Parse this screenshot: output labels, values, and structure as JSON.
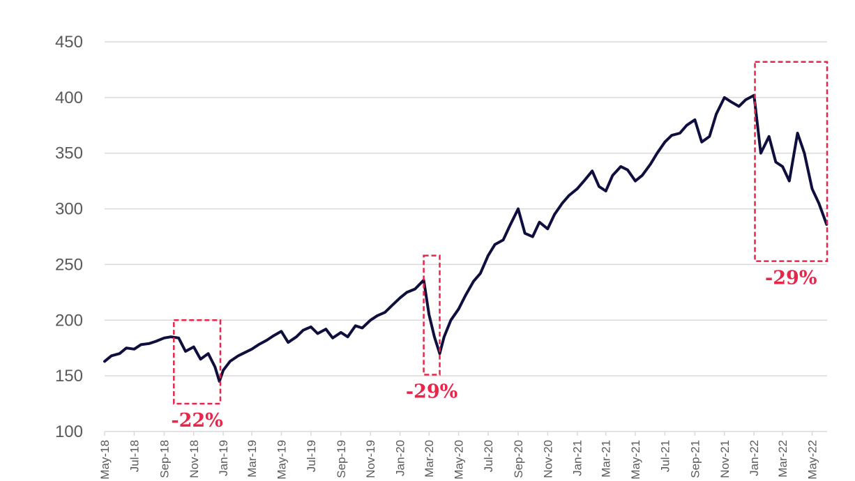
{
  "chart_data": {
    "type": "line",
    "title": "",
    "xlabel": "",
    "ylabel": "",
    "ylim": [
      100,
      450
    ],
    "y_ticks": [
      100,
      150,
      200,
      250,
      300,
      350,
      400,
      450
    ],
    "x_tick_labels": [
      "May-18",
      "Jul-18",
      "Sep-18",
      "Nov-18",
      "Jan-19",
      "Mar-19",
      "May-19",
      "Jul-19",
      "Sep-19",
      "Nov-19",
      "Jan-20",
      "Mar-20",
      "May-20",
      "Jul-20",
      "Sep-20",
      "Nov-20",
      "Jan-21",
      "Mar-21",
      "May-21",
      "Jul-21",
      "Sep-21",
      "Nov-21",
      "Jan-22",
      "Mar-22",
      "May-22"
    ],
    "grid": true,
    "legend": "none",
    "colors": {
      "line": "#0f0f3d",
      "grid": "#d9d9d9",
      "drawdown": "#e8264a",
      "axis_text": "#595959"
    },
    "series": [
      {
        "x": [
          "2018-05-01",
          "2018-05-15",
          "2018-06-01",
          "2018-06-15",
          "2018-07-01",
          "2018-07-15",
          "2018-08-01",
          "2018-08-15",
          "2018-09-01",
          "2018-09-15",
          "2018-10-01",
          "2018-10-15",
          "2018-11-01",
          "2018-11-15",
          "2018-12-01",
          "2018-12-15",
          "2018-12-24",
          "2019-01-01",
          "2019-01-15",
          "2019-02-01",
          "2019-02-15",
          "2019-03-01",
          "2019-03-15",
          "2019-04-01",
          "2019-04-15",
          "2019-05-01",
          "2019-05-15",
          "2019-06-01",
          "2019-06-15",
          "2019-07-01",
          "2019-07-15",
          "2019-08-01",
          "2019-08-15",
          "2019-09-01",
          "2019-09-15",
          "2019-10-01",
          "2019-10-15",
          "2019-11-01",
          "2019-11-15",
          "2019-12-01",
          "2019-12-15",
          "2020-01-01",
          "2020-01-15",
          "2020-02-01",
          "2020-02-19",
          "2020-03-01",
          "2020-03-12",
          "2020-03-23",
          "2020-04-01",
          "2020-04-15",
          "2020-05-01",
          "2020-05-15",
          "2020-06-01",
          "2020-06-15",
          "2020-07-01",
          "2020-07-15",
          "2020-08-01",
          "2020-08-15",
          "2020-09-01",
          "2020-09-15",
          "2020-10-01",
          "2020-10-15",
          "2020-11-01",
          "2020-11-15",
          "2020-12-01",
          "2020-12-15",
          "2021-01-01",
          "2021-01-15",
          "2021-02-01",
          "2021-02-15",
          "2021-03-01",
          "2021-03-15",
          "2021-04-01",
          "2021-04-15",
          "2021-05-01",
          "2021-05-15",
          "2021-06-01",
          "2021-06-15",
          "2021-07-01",
          "2021-07-15",
          "2021-08-01",
          "2021-08-15",
          "2021-09-01",
          "2021-09-15",
          "2021-10-01",
          "2021-10-15",
          "2021-11-01",
          "2021-11-15",
          "2021-12-01",
          "2021-12-15",
          "2022-01-01",
          "2022-01-15",
          "2022-02-01",
          "2022-02-15",
          "2022-03-01",
          "2022-03-15",
          "2022-04-01",
          "2022-04-15",
          "2022-05-01",
          "2022-05-15",
          "2022-05-31"
        ],
        "y": [
          163,
          168,
          170,
          175,
          174,
          178,
          179,
          181,
          184,
          185,
          184,
          172,
          176,
          165,
          170,
          158,
          145,
          155,
          163,
          168,
          171,
          174,
          178,
          182,
          186,
          190,
          180,
          185,
          191,
          194,
          188,
          192,
          184,
          189,
          185,
          195,
          193,
          200,
          204,
          207,
          213,
          220,
          225,
          228,
          236,
          205,
          185,
          170,
          185,
          200,
          210,
          222,
          235,
          242,
          258,
          268,
          272,
          285,
          300,
          278,
          275,
          288,
          282,
          295,
          305,
          312,
          318,
          325,
          334,
          320,
          316,
          330,
          338,
          335,
          325,
          330,
          340,
          350,
          360,
          366,
          368,
          375,
          380,
          360,
          365,
          385,
          400,
          396,
          392,
          398,
          402,
          350,
          365,
          342,
          338,
          325,
          368,
          350,
          318,
          305,
          286
        ]
      }
    ],
    "annotations": [
      {
        "label": "-22%",
        "x_start": "2018-09-21",
        "x_end": "2018-12-26",
        "y_low": 125,
        "y_high": 200
      },
      {
        "label": "-29%",
        "x_start": "2020-02-19",
        "x_end": "2020-03-23",
        "y_low": 151,
        "y_high": 258
      },
      {
        "label": "-29%",
        "x_start": "2022-01-03",
        "x_end": "2022-06-01",
        "y_low": 253,
        "y_high": 432
      }
    ]
  }
}
